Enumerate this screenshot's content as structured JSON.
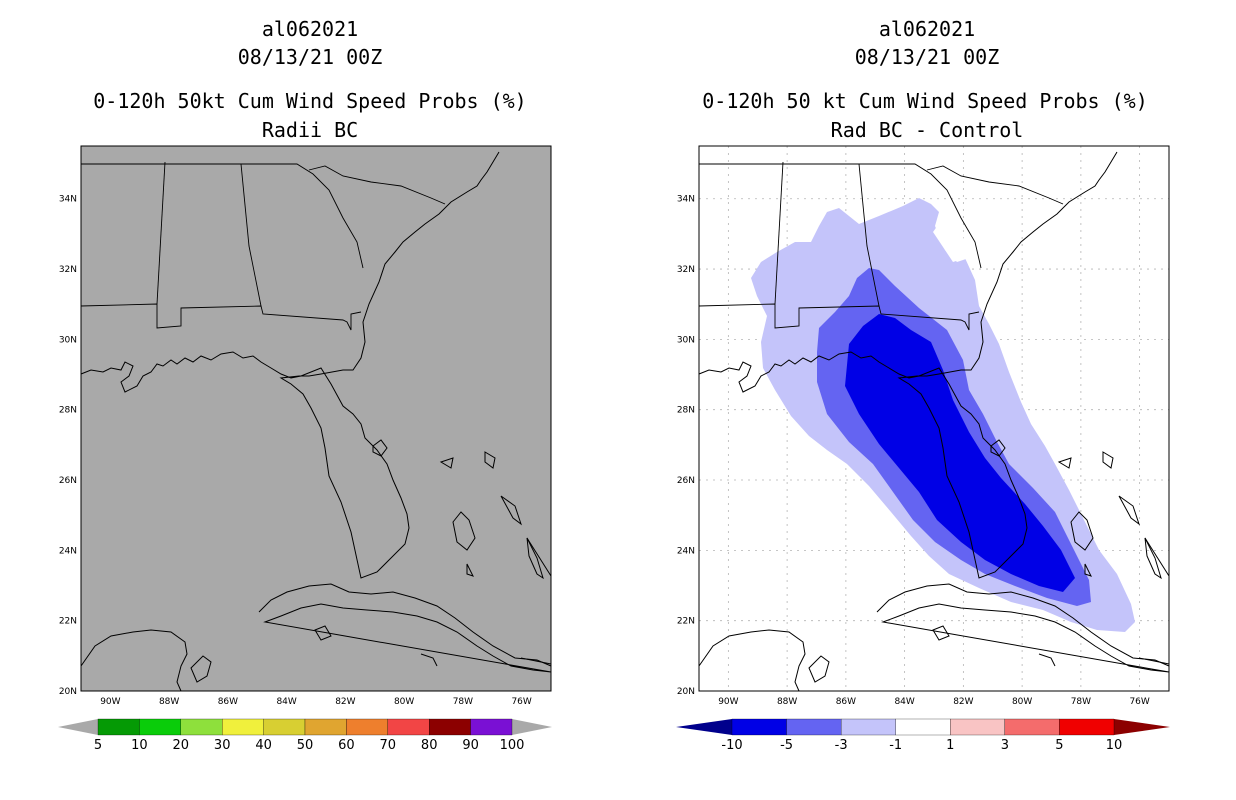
{
  "panels": [
    {
      "storm_id": "al062021",
      "datetime": "08/13/21 00Z",
      "title": "0-120h 50kt Cum Wind Speed Probs (%)",
      "subtitle": "Radii BC",
      "colorbar": {
        "labels": [
          "5",
          "10",
          "20",
          "30",
          "40",
          "50",
          "60",
          "70",
          "80",
          "90",
          "100"
        ],
        "colors": [
          "#059a05",
          "#0acc0a",
          "#8ee03c",
          "#f0f03c",
          "#d8cf32",
          "#e0a530",
          "#ee7f2d",
          "#f24545",
          "#8c0000",
          "#7a10d4"
        ]
      }
    },
    {
      "storm_id": "al062021",
      "datetime": "08/13/21 00Z",
      "title": "0-120h 50 kt Cum Wind Speed Probs (%)",
      "subtitle": "Rad BC - Control",
      "colorbar": {
        "labels": [
          "-10",
          "-5",
          "-3",
          "-1",
          "1",
          "3",
          "5",
          "10"
        ],
        "colors": [
          "#0000e6",
          "#6464f2",
          "#c4c4fa",
          "#ffffff",
          "#f9c4c4",
          "#f46c6c",
          "#f00000"
        ],
        "end_colors": [
          "#00008c",
          "#8c0000"
        ]
      }
    }
  ],
  "map": {
    "lon_ticks": [
      "90W",
      "88W",
      "86W",
      "84W",
      "82W",
      "80W",
      "78W",
      "76W"
    ],
    "lat_ticks": [
      "34N",
      "32N",
      "30N",
      "28N",
      "26N",
      "24N",
      "22N",
      "20N"
    ],
    "lon_values": [
      -90,
      -88,
      -86,
      -84,
      -82,
      -80,
      -78,
      -76
    ],
    "lat_values": [
      34,
      32,
      30,
      28,
      26,
      24,
      22,
      20
    ],
    "lon_range": [
      -91,
      -75
    ],
    "lat_range": [
      20,
      35.5
    ]
  },
  "colors": {
    "gray_fill": "#a9a9a9",
    "gray_arrow": "#a9a9a9"
  }
}
